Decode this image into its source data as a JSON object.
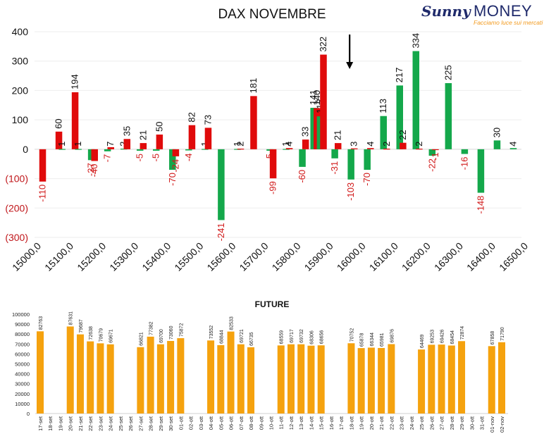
{
  "logo": {
    "brand_sunny": "Sunny",
    "brand_money": "MONEY",
    "tagline": "Facciamo luce sui mercati"
  },
  "colors": {
    "positive": "#14a84b",
    "negative": "#e00b0b",
    "future": "#f5a20e",
    "neg_label": "#d11a1a"
  },
  "chart_data": [
    {
      "type": "bar",
      "title": "DAX NOVEMBRE",
      "xlabel": "",
      "ylabel": "",
      "ylim": [
        -300,
        400
      ],
      "y_ticks": [
        {
          "v": 400,
          "label": "400"
        },
        {
          "v": 300,
          "label": "300"
        },
        {
          "v": 200,
          "label": "200"
        },
        {
          "v": 100,
          "label": "100"
        },
        {
          "v": 0,
          "label": "0"
        },
        {
          "v": -100,
          "label": "(100)"
        },
        {
          "v": -200,
          "label": "(200)"
        },
        {
          "v": -300,
          "label": "(300)"
        }
      ],
      "x_ticks": [
        "15000,0",
        "15100,0",
        "15200,0",
        "15300,0",
        "15400,0",
        "15500,0",
        "15600,0",
        "15700,0",
        "15800,0",
        "15900,0",
        "16000,0",
        "16100,0",
        "16200,0",
        "16300,0",
        "16400,0",
        "16500,0"
      ],
      "arrow_at_strike": 16000,
      "series": [
        {
          "color": "red",
          "values": [
            -110,
            60,
            194,
            0,
            -40,
            7,
            35,
            21,
            50,
            -24,
            82,
            73,
            2,
            181,
            -99,
            4,
            33,
            140,
            322,
            21,
            0,
            4,
            2,
            22,
            0,
            0,
            0,
            0,
            0,
            0
          ]
        },
        {
          "color": "green",
          "values": [
            0,
            1,
            1,
            -37,
            -7,
            2,
            -5,
            -5,
            -70,
            -4,
            1,
            -241,
            1,
            -5,
            1,
            -60,
            141,
            112,
            -31,
            -103,
            -70,
            113,
            217,
            334,
            -22,
            -1,
            225,
            -16,
            -148,
            30,
            4
          ]
        }
      ],
      "bars": [
        {
          "x": 15025,
          "v": -110,
          "c": "r"
        },
        {
          "x": 15075,
          "v": 60,
          "c": "r"
        },
        {
          "x": 15085,
          "v": 1,
          "c": "g"
        },
        {
          "x": 15125,
          "v": 194,
          "c": "r"
        },
        {
          "x": 15135,
          "v": 1,
          "c": "g"
        },
        {
          "x": 15175,
          "v": -37,
          "c": "g"
        },
        {
          "x": 15185,
          "v": -40,
          "c": "r"
        },
        {
          "x": 15225,
          "v": -7,
          "c": "g"
        },
        {
          "x": 15235,
          "v": 7,
          "c": "r"
        },
        {
          "x": 15275,
          "v": 2,
          "c": "g"
        },
        {
          "x": 15285,
          "v": 35,
          "c": "r"
        },
        {
          "x": 15325,
          "v": -5,
          "c": "g"
        },
        {
          "x": 15335,
          "v": 21,
          "c": "r"
        },
        {
          "x": 15375,
          "v": -5,
          "c": "g"
        },
        {
          "x": 15385,
          "v": 50,
          "c": "r"
        },
        {
          "x": 15425,
          "v": -70,
          "c": "g"
        },
        {
          "x": 15435,
          "v": -24,
          "c": "r"
        },
        {
          "x": 15475,
          "v": -4,
          "c": "g"
        },
        {
          "x": 15485,
          "v": 82,
          "c": "r"
        },
        {
          "x": 15525,
          "v": 1,
          "c": "g"
        },
        {
          "x": 15535,
          "v": 73,
          "c": "r"
        },
        {
          "x": 15575,
          "v": -241,
          "c": "g"
        },
        {
          "x": 15625,
          "v": 1,
          "c": "g"
        },
        {
          "x": 15635,
          "v": 2,
          "c": "r"
        },
        {
          "x": 15675,
          "v": 181,
          "c": "r"
        },
        {
          "x": 15725,
          "v": -5,
          "c": "g"
        },
        {
          "x": 15735,
          "v": -99,
          "c": "r"
        },
        {
          "x": 15775,
          "v": 1,
          "c": "g"
        },
        {
          "x": 15785,
          "v": 4,
          "c": "r"
        },
        {
          "x": 15825,
          "v": -60,
          "c": "g"
        },
        {
          "x": 15835,
          "v": 33,
          "c": "r"
        },
        {
          "x": 15860,
          "v": 141,
          "c": "g"
        },
        {
          "x": 15870,
          "v": 140,
          "c": "r"
        },
        {
          "x": 15880,
          "v": 112,
          "c": "g"
        },
        {
          "x": 15890,
          "v": 322,
          "c": "r"
        },
        {
          "x": 15925,
          "v": -31,
          "c": "g"
        },
        {
          "x": 15935,
          "v": 21,
          "c": "r"
        },
        {
          "x": 15975,
          "v": -103,
          "c": "g"
        },
        {
          "x": 15985,
          "v": 3,
          "c": "r"
        },
        {
          "x": 16025,
          "v": -70,
          "c": "g"
        },
        {
          "x": 16035,
          "v": 4,
          "c": "r"
        },
        {
          "x": 16075,
          "v": 113,
          "c": "g"
        },
        {
          "x": 16085,
          "v": 2,
          "c": "r"
        },
        {
          "x": 16125,
          "v": 217,
          "c": "g"
        },
        {
          "x": 16135,
          "v": 22,
          "c": "r"
        },
        {
          "x": 16175,
          "v": 334,
          "c": "g"
        },
        {
          "x": 16185,
          "v": 2,
          "c": "r"
        },
        {
          "x": 16225,
          "v": -22,
          "c": "g"
        },
        {
          "x": 16235,
          "v": -1,
          "c": "r"
        },
        {
          "x": 16275,
          "v": 225,
          "c": "g"
        },
        {
          "x": 16325,
          "v": -16,
          "c": "g"
        },
        {
          "x": 16375,
          "v": -148,
          "c": "g"
        },
        {
          "x": 16425,
          "v": 30,
          "c": "g"
        },
        {
          "x": 16475,
          "v": 4,
          "c": "g"
        }
      ]
    },
    {
      "type": "bar",
      "title": "FUTURE",
      "xlabel": "",
      "ylabel": "",
      "ylim": [
        0,
        100000
      ],
      "y_ticks": [
        "0",
        "10000",
        "20000",
        "30000",
        "40000",
        "50000",
        "60000",
        "70000",
        "80000",
        "90000",
        "100000"
      ],
      "categories": [
        "17-set",
        "18-set",
        "19-set",
        "20-set",
        "21-set",
        "22-set",
        "23-set",
        "24-set",
        "25-set",
        "26-set",
        "27-set",
        "28-set",
        "29-set",
        "30-set",
        "01-ott",
        "02-ott",
        "03-ott",
        "04-ott",
        "05-ott",
        "06-ott",
        "07-ott",
        "08-ott",
        "09-ott",
        "10-ott",
        "11-ott",
        "12-ott",
        "13-ott",
        "14-ott",
        "15-ott",
        "16-ott",
        "17-ott",
        "18-ott",
        "19-ott",
        "20-ott",
        "21-ott",
        "22-ott",
        "23-ott",
        "24-ott",
        "25-ott",
        "26-ott",
        "27-ott",
        "28-ott",
        "29-ott",
        "30-ott",
        "31-ott",
        "01-nov",
        "02-nov"
      ],
      "values": [
        82763,
        null,
        null,
        87631,
        79687,
        72638,
        70679,
        69671,
        null,
        null,
        66821,
        77382,
        69700,
        73060,
        75872,
        null,
        null,
        73552,
        68844,
        82533,
        69721,
        66735,
        null,
        null,
        68559,
        69717,
        69732,
        68306,
        68656,
        null,
        null,
        70752,
        65878,
        66344,
        65981,
        69876,
        null,
        null,
        64469,
        69253,
        69426,
        68454,
        72874,
        null,
        null,
        67858,
        71790
      ]
    }
  ]
}
